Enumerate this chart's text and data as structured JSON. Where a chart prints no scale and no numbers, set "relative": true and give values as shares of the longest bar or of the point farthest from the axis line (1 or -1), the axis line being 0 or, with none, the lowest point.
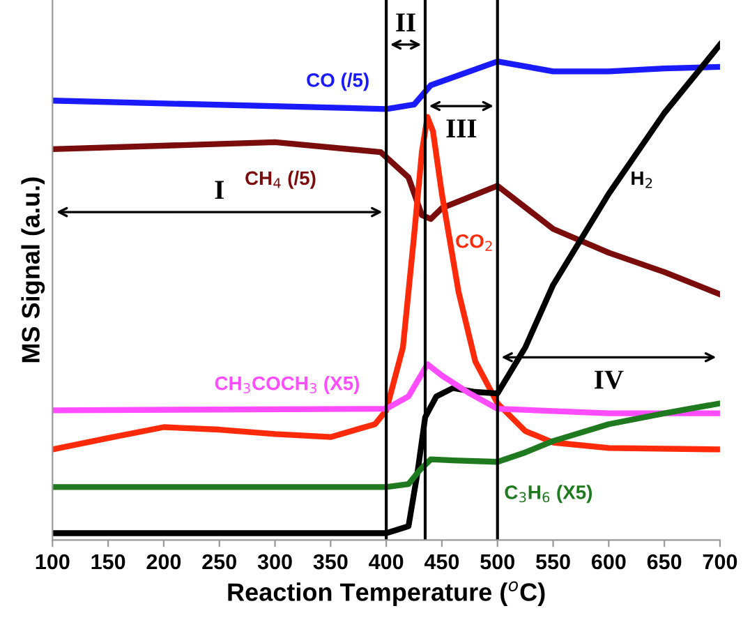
{
  "chart_data": {
    "type": "line",
    "relative": true,
    "xlabel": "Reaction Temperature ($^{o}$C)",
    "ylabel": "MS Signal (a.u.)",
    "xlim": [
      100,
      700
    ],
    "xticks": [
      100,
      150,
      200,
      250,
      300,
      350,
      400,
      450,
      500,
      550,
      600,
      650,
      700
    ],
    "grid": false,
    "legend": false,
    "series": [
      {
        "name": "CO (/5)",
        "color": "#1a1aff",
        "x": [
          100,
          400,
          425,
          440,
          500,
          550,
          600,
          650,
          700
        ],
        "values": [
          0.887,
          0.87,
          0.879,
          0.918,
          0.966,
          0.946,
          0.946,
          0.952,
          0.955
        ]
      },
      {
        "name": "CH$_{4}$ (/5)",
        "color": "#7b0c0c",
        "x": [
          100,
          300,
          395,
          420,
          432,
          440,
          450,
          500,
          550,
          600,
          650,
          700
        ],
        "values": [
          0.789,
          0.803,
          0.783,
          0.732,
          0.656,
          0.648,
          0.67,
          0.715,
          0.628,
          0.58,
          0.541,
          0.496
        ]
      },
      {
        "name": "CO$_{2}$",
        "color": "#ff2a0a",
        "x": [
          100,
          150,
          200,
          250,
          300,
          350,
          390,
          400,
          415,
          425,
          432,
          437,
          442,
          450,
          465,
          480,
          500,
          525,
          550,
          600,
          700
        ],
        "values": [
          0.183,
          0.206,
          0.228,
          0.223,
          0.214,
          0.208,
          0.234,
          0.262,
          0.389,
          0.614,
          0.783,
          0.854,
          0.825,
          0.699,
          0.501,
          0.361,
          0.276,
          0.22,
          0.197,
          0.186,
          0.183
        ]
      },
      {
        "name": "H$_{2}$",
        "color": "#000000",
        "x": [
          100,
          400,
          420,
          428,
          435,
          445,
          460,
          480,
          500,
          525,
          550,
          600,
          650,
          700
        ],
        "values": [
          0.014,
          0.014,
          0.028,
          0.135,
          0.248,
          0.29,
          0.307,
          0.299,
          0.296,
          0.389,
          0.515,
          0.699,
          0.862,
          1.0
        ]
      },
      {
        "name": "CH$_{3}$COCH$_{3}$ (X5)",
        "color": "#ff4cff",
        "x": [
          100,
          400,
          420,
          437,
          450,
          475,
          500,
          600,
          700
        ],
        "values": [
          0.262,
          0.265,
          0.29,
          0.355,
          0.332,
          0.296,
          0.265,
          0.256,
          0.256
        ]
      },
      {
        "name": "C$_{3}$H$_{6}$ (X5)",
        "color": "#1f7a1f",
        "x": [
          100,
          400,
          420,
          430,
          440,
          460,
          500,
          525,
          550,
          600,
          650,
          700
        ],
        "values": [
          0.107,
          0.107,
          0.113,
          0.141,
          0.163,
          0.161,
          0.158,
          0.177,
          0.2,
          0.234,
          0.256,
          0.276
        ]
      }
    ],
    "ref_lines": [
      {
        "axis": "x",
        "value": 400,
        "color": "#000000"
      },
      {
        "axis": "x",
        "value": 435,
        "color": "#000000"
      },
      {
        "axis": "x",
        "value": 500,
        "color": "#000000"
      }
    ],
    "annotations": [
      "I",
      "II",
      "III",
      "IV"
    ]
  }
}
